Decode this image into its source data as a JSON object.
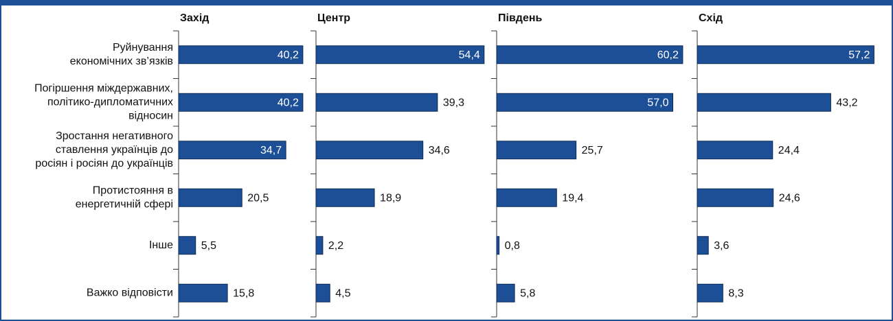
{
  "chart_data": {
    "type": "bar",
    "orientation": "horizontal",
    "color": "#1d4f97",
    "categories": [
      [
        "Руйнування",
        "економічних зв’язків"
      ],
      [
        "Погіршення міждержавних,",
        "політико-дипломатичних",
        "відносин"
      ],
      [
        "Зростання негативного",
        "ставлення українців до",
        "росіян і росіян до українців"
      ],
      [
        "Протистояння в",
        "енергетичній сфері"
      ],
      [
        "Інше"
      ],
      [
        "Важко відповісти"
      ]
    ],
    "panels": [
      {
        "title": "Захід",
        "values": [
          40.2,
          40.2,
          34.7,
          20.5,
          5.5,
          15.8
        ],
        "value_labels": [
          "40,2",
          "40,2",
          "34,7",
          "20,5",
          "5,5",
          "15,8"
        ]
      },
      {
        "title": "Центр",
        "values": [
          54.4,
          39.3,
          34.6,
          18.9,
          2.2,
          4.5
        ],
        "value_labels": [
          "54,4",
          "39,3",
          "34,6",
          "18,9",
          "2,2",
          "4,5"
        ]
      },
      {
        "title": "Південь",
        "values": [
          60.2,
          57.0,
          25.7,
          19.4,
          0.8,
          5.8
        ],
        "value_labels": [
          "60,2",
          "57,0",
          "25,7",
          "19,4",
          "0,8",
          "5,8"
        ]
      },
      {
        "title": "Схід",
        "values": [
          57.2,
          43.2,
          24.4,
          24.6,
          3.6,
          8.3
        ],
        "value_labels": [
          "57,2",
          "43,2",
          "24,4",
          "24,6",
          "3,6",
          "8,3"
        ]
      }
    ]
  }
}
